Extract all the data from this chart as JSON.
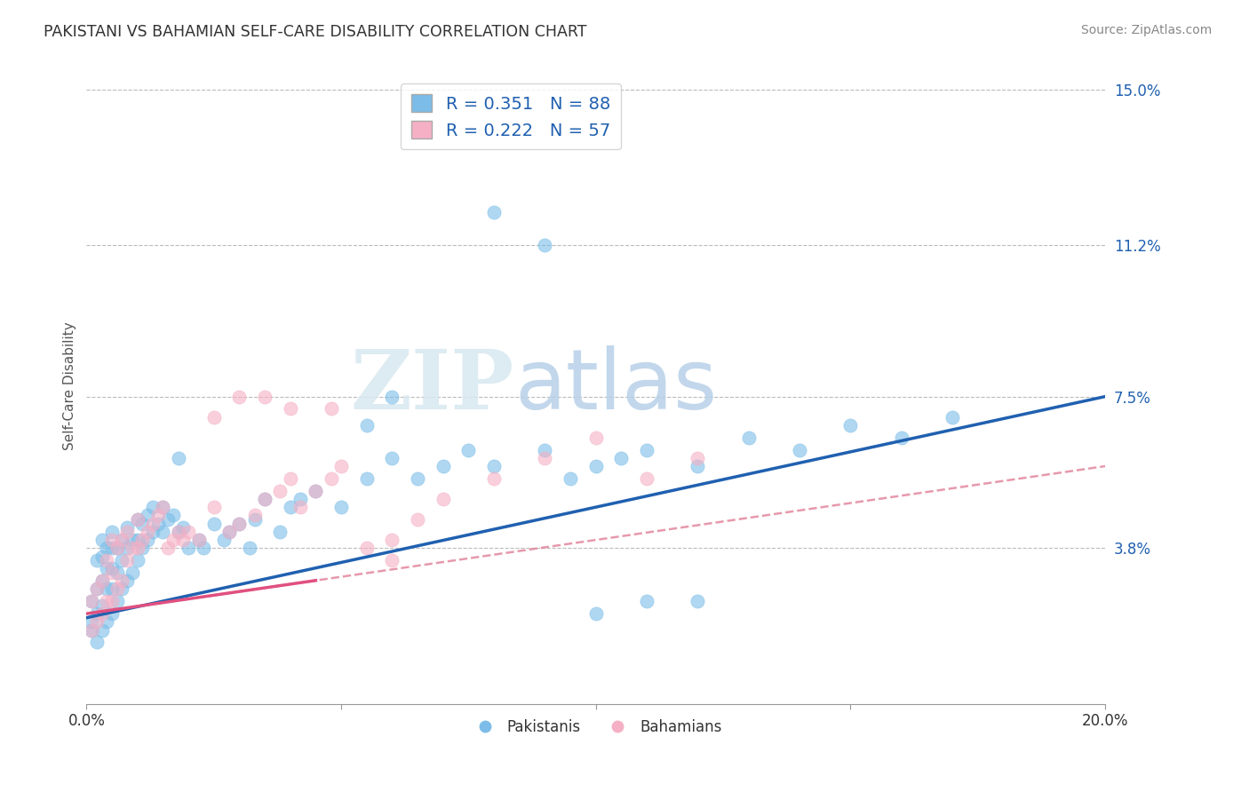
{
  "title": "PAKISTANI VS BAHAMIAN SELF-CARE DISABILITY CORRELATION CHART",
  "source": "Source: ZipAtlas.com",
  "ylabel": "Self-Care Disability",
  "xlim": [
    0.0,
    0.2
  ],
  "ylim": [
    0.0,
    0.155
  ],
  "xticks": [
    0.0,
    0.05,
    0.1,
    0.15,
    0.2
  ],
  "xticklabels": [
    "0.0%",
    "",
    "",
    "",
    "20.0%"
  ],
  "yticks_right": [
    0.038,
    0.075,
    0.112,
    0.15
  ],
  "yticklabels_right": [
    "3.8%",
    "7.5%",
    "11.2%",
    "15.0%"
  ],
  "pakistani_color": "#7bbde8",
  "bahamian_color": "#f5b0c5",
  "trend_pak_color": "#2060b0",
  "trend_bah_color": "#e05080",
  "trend_bah_dash_color": "#e08098",
  "R_pak": 0.351,
  "N_pak": 88,
  "R_bah": 0.222,
  "N_bah": 57,
  "watermark_zip": "ZIP",
  "watermark_atlas": "atlas",
  "background_color": "#ffffff",
  "grid_color": "#bbbbbb",
  "pak_trend_x0": 0.0,
  "pak_trend_y0": 0.021,
  "pak_trend_x1": 0.2,
  "pak_trend_y1": 0.075,
  "bah_trend_x0": 0.0,
  "bah_trend_y0": 0.022,
  "bah_trend_x1": 0.2,
  "bah_trend_y1": 0.058,
  "pakistani_points_x": [
    0.001,
    0.001,
    0.001,
    0.002,
    0.002,
    0.002,
    0.002,
    0.003,
    0.003,
    0.003,
    0.003,
    0.003,
    0.004,
    0.004,
    0.004,
    0.004,
    0.005,
    0.005,
    0.005,
    0.005,
    0.005,
    0.006,
    0.006,
    0.006,
    0.007,
    0.007,
    0.007,
    0.008,
    0.008,
    0.008,
    0.009,
    0.009,
    0.01,
    0.01,
    0.01,
    0.011,
    0.011,
    0.012,
    0.012,
    0.013,
    0.013,
    0.014,
    0.015,
    0.015,
    0.016,
    0.017,
    0.018,
    0.019,
    0.02,
    0.022,
    0.023,
    0.025,
    0.027,
    0.028,
    0.03,
    0.032,
    0.033,
    0.035,
    0.038,
    0.04,
    0.042,
    0.045,
    0.05,
    0.055,
    0.06,
    0.065,
    0.07,
    0.075,
    0.08,
    0.09,
    0.095,
    0.1,
    0.105,
    0.11,
    0.12,
    0.13,
    0.14,
    0.15,
    0.16,
    0.17,
    0.06,
    0.055,
    0.08,
    0.09,
    0.1,
    0.11,
    0.12,
    0.018
  ],
  "pakistani_points_y": [
    0.02,
    0.018,
    0.025,
    0.015,
    0.022,
    0.028,
    0.035,
    0.018,
    0.024,
    0.03,
    0.036,
    0.04,
    0.02,
    0.028,
    0.033,
    0.038,
    0.022,
    0.028,
    0.033,
    0.038,
    0.042,
    0.025,
    0.032,
    0.038,
    0.028,
    0.035,
    0.04,
    0.03,
    0.038,
    0.043,
    0.032,
    0.04,
    0.035,
    0.04,
    0.045,
    0.038,
    0.044,
    0.04,
    0.046,
    0.042,
    0.048,
    0.044,
    0.042,
    0.048,
    0.045,
    0.046,
    0.042,
    0.043,
    0.038,
    0.04,
    0.038,
    0.044,
    0.04,
    0.042,
    0.044,
    0.038,
    0.045,
    0.05,
    0.042,
    0.048,
    0.05,
    0.052,
    0.048,
    0.055,
    0.06,
    0.055,
    0.058,
    0.062,
    0.058,
    0.062,
    0.055,
    0.058,
    0.06,
    0.062,
    0.058,
    0.065,
    0.062,
    0.068,
    0.065,
    0.07,
    0.075,
    0.068,
    0.12,
    0.112,
    0.022,
    0.025,
    0.025,
    0.06
  ],
  "bahamian_points_x": [
    0.001,
    0.001,
    0.002,
    0.002,
    0.003,
    0.003,
    0.004,
    0.004,
    0.005,
    0.005,
    0.005,
    0.006,
    0.006,
    0.007,
    0.007,
    0.008,
    0.008,
    0.009,
    0.01,
    0.01,
    0.011,
    0.012,
    0.013,
    0.014,
    0.015,
    0.016,
    0.017,
    0.018,
    0.019,
    0.02,
    0.022,
    0.025,
    0.028,
    0.03,
    0.033,
    0.035,
    0.038,
    0.04,
    0.042,
    0.045,
    0.048,
    0.05,
    0.055,
    0.06,
    0.065,
    0.07,
    0.08,
    0.09,
    0.1,
    0.11,
    0.12,
    0.035,
    0.04,
    0.025,
    0.03,
    0.048,
    0.06
  ],
  "bahamian_points_y": [
    0.018,
    0.025,
    0.02,
    0.028,
    0.022,
    0.03,
    0.025,
    0.035,
    0.025,
    0.032,
    0.04,
    0.028,
    0.038,
    0.03,
    0.04,
    0.035,
    0.042,
    0.038,
    0.038,
    0.045,
    0.04,
    0.042,
    0.044,
    0.046,
    0.048,
    0.038,
    0.04,
    0.042,
    0.04,
    0.042,
    0.04,
    0.048,
    0.042,
    0.044,
    0.046,
    0.05,
    0.052,
    0.055,
    0.048,
    0.052,
    0.055,
    0.058,
    0.038,
    0.04,
    0.045,
    0.05,
    0.055,
    0.06,
    0.065,
    0.055,
    0.06,
    0.075,
    0.072,
    0.07,
    0.075,
    0.072,
    0.035
  ]
}
